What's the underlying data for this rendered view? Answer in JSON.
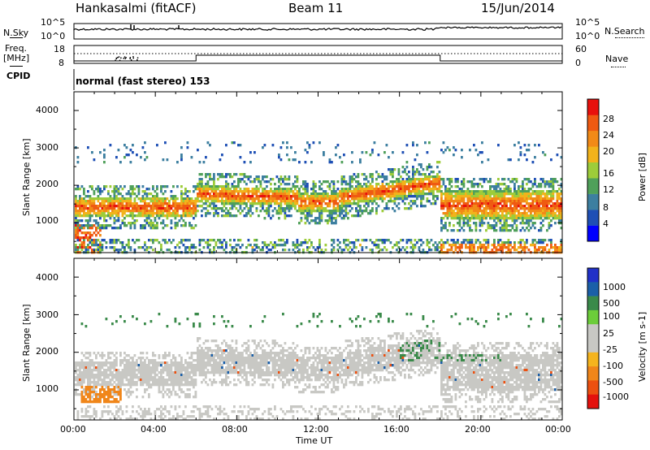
{
  "header": {
    "station": "Hankasalmi (fitACF)",
    "beam": "Beam 11",
    "date": "15/Jun/2014"
  },
  "noise_panel": {
    "left_label": "N.Sky",
    "right_label": "N.Search",
    "left_ticks": [
      "10^5",
      "10^0"
    ],
    "right_ticks": [
      "10^5",
      "10^0"
    ]
  },
  "freq_panel": {
    "left_label_line1": "Freq.",
    "left_label_line2": "[MHz]",
    "left_ticks": [
      "18",
      "8"
    ],
    "right_label": "Nave",
    "right_ticks": [
      "60",
      "0"
    ],
    "cpid_label": "CPID",
    "cpid_text": "normal (fast stereo) 153"
  },
  "x_axis": {
    "ticks": [
      "00:00",
      "04:00",
      "08:00",
      "12:00",
      "16:00",
      "20:00",
      "00:00"
    ],
    "label": "Time UT"
  },
  "chart_data": [
    {
      "type": "heatmap",
      "quantity": "Power",
      "ylabel": "Slant Range [km]",
      "yticks": [
        "1000",
        "2000",
        "3000",
        "4000"
      ],
      "ylim": [
        200,
        4500
      ],
      "xlim_hours": [
        0,
        24
      ],
      "colorbar": {
        "label": "Power [dB]",
        "ticks": [
          "4",
          "8",
          "12",
          "16",
          "20",
          "24",
          "28"
        ],
        "colors": [
          "#0000ff",
          "#1e4fb5",
          "#3d7fa0",
          "#4fa05a",
          "#9dcc3a",
          "#f2b31b",
          "#f28a17",
          "#ef5a12",
          "#e8110d"
        ]
      },
      "features": [
        {
          "from_h": 0,
          "to_h": 6,
          "range_km": [
            1200,
            1700
          ],
          "power_db": 26
        },
        {
          "from_h": 6,
          "to_h": 11,
          "range_km": [
            1600,
            2000
          ],
          "power_db": 22
        },
        {
          "from_h": 11,
          "to_h": 13,
          "range_km": [
            1450,
            1700
          ],
          "power_db": 20
        },
        {
          "from_h": 13,
          "to_h": 18,
          "range_km": [
            1600,
            2300
          ],
          "power_db": 22
        },
        {
          "from_h": 18,
          "to_h": 24,
          "range_km": [
            1200,
            1800
          ],
          "power_db": 28
        }
      ]
    },
    {
      "type": "heatmap",
      "quantity": "Velocity",
      "ylabel": "Slant Range [km]",
      "yticks": [
        "1000",
        "2000",
        "3000",
        "4000"
      ],
      "ylim": [
        200,
        4500
      ],
      "xlim_hours": [
        0,
        24
      ],
      "colorbar": {
        "label": "Velocity [m s-1]",
        "ticks": [
          "1000",
          "500",
          "100",
          "25",
          "-25",
          "-100",
          "-500",
          "-1000"
        ],
        "colors": [
          "#2131c8",
          "#1b5fa8",
          "#3a8a4a",
          "#6ccd3a",
          "#c8c8c4",
          "#c8c8c4",
          "#f5b41e",
          "#f0861a",
          "#ec5010",
          "#e4110d"
        ]
      },
      "features": [
        {
          "from_h": 0,
          "to_h": 6,
          "range_km": [
            1200,
            1900
          ],
          "velocity": 0
        },
        {
          "from_h": 0.5,
          "to_h": 2,
          "range_km": [
            700,
            1100
          ],
          "velocity": -150
        },
        {
          "from_h": 6,
          "to_h": 18,
          "range_km": [
            1300,
            2100
          ],
          "velocity": 0
        },
        {
          "from_h": 16,
          "to_h": 20,
          "range_km": [
            1800,
            2400
          ],
          "velocity": 100
        },
        {
          "from_h": 18,
          "to_h": 24,
          "range_km": [
            300,
            1800
          ],
          "velocity": 0
        }
      ]
    }
  ]
}
